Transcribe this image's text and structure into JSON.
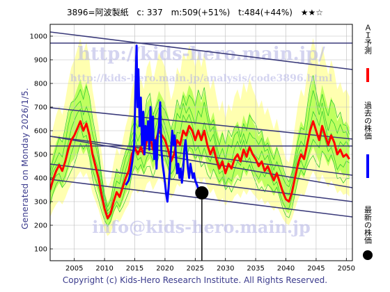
{
  "header": {
    "code_name": "3896=阿波製紙",
    "current": "c: 337",
    "max": "m:509(+51%)",
    "target": "t:484(+44%)",
    "rating": "★★☆"
  },
  "side_note": "Generated on Monday 2026/1/5.",
  "footer": "Copyright (c) Kids-Hero Research Institute. All Rights Reserved.",
  "watermarks": {
    "url": "http://kids-hero.main.jp/",
    "analysis_url": "http://kids-hero.main.jp/analysis/code3896.html",
    "email": "info@kids-hero.main.jp"
  },
  "legend": {
    "forecast": "ＡＩ予測",
    "past": "過去の株価",
    "latest": "最新の株価"
  },
  "colors": {
    "forecast": "#ff0000",
    "past": "#0000ff",
    "latest": "#000000",
    "band_inner": "#bfff5f",
    "band_outer": "#ffffb0",
    "trend_lines": "#3a3a7a",
    "frame": "#000000"
  },
  "chart_data": {
    "type": "line",
    "title": "",
    "xlabel": "",
    "ylabel": "",
    "xlim": [
      2001,
      2051
    ],
    "ylim": [
      50,
      1050
    ],
    "x_ticks": [
      2005,
      2010,
      2015,
      2020,
      2025,
      2030,
      2035,
      2040,
      2045,
      2050
    ],
    "y_ticks": [
      100,
      200,
      300,
      400,
      500,
      600,
      700,
      800,
      900,
      1000
    ],
    "grid": true,
    "legend_position": "right",
    "latest_point": {
      "x": 2026.1,
      "y": 337
    },
    "series": [
      {
        "name": "ＡＩ予測",
        "points": [
          [
            2001.0,
            350
          ],
          [
            2001.5,
            395
          ],
          [
            2002.0,
            430
          ],
          [
            2002.5,
            455
          ],
          [
            2003.0,
            430
          ],
          [
            2003.5,
            470
          ],
          [
            2004.0,
            520
          ],
          [
            2004.5,
            560
          ],
          [
            2005.0,
            580
          ],
          [
            2005.5,
            610
          ],
          [
            2006.0,
            640
          ],
          [
            2006.5,
            600
          ],
          [
            2007.0,
            630
          ],
          [
            2007.5,
            580
          ],
          [
            2008.0,
            500
          ],
          [
            2008.5,
            450
          ],
          [
            2009.0,
            400
          ],
          [
            2009.5,
            330
          ],
          [
            2010.0,
            270
          ],
          [
            2010.5,
            230
          ],
          [
            2011.0,
            250
          ],
          [
            2011.5,
            300
          ],
          [
            2012.0,
            340
          ],
          [
            2012.5,
            320
          ],
          [
            2013.0,
            360
          ],
          [
            2013.5,
            400
          ],
          [
            2014.0,
            430
          ],
          [
            2014.5,
            500
          ],
          [
            2015.0,
            530
          ],
          [
            2015.5,
            500
          ],
          [
            2016.0,
            530
          ],
          [
            2016.5,
            500
          ],
          [
            2017.0,
            560
          ],
          [
            2017.5,
            580
          ],
          [
            2018.0,
            520
          ],
          [
            2018.5,
            560
          ],
          [
            2019.0,
            600
          ],
          [
            2019.5,
            580
          ],
          [
            2020.0,
            560
          ],
          [
            2020.5,
            520
          ],
          [
            2021.0,
            470
          ],
          [
            2021.5,
            500
          ],
          [
            2022.0,
            560
          ],
          [
            2022.5,
            540
          ],
          [
            2023.0,
            600
          ],
          [
            2023.5,
            580
          ],
          [
            2024.0,
            620
          ],
          [
            2024.5,
            600
          ],
          [
            2025.0,
            560
          ],
          [
            2025.5,
            600
          ],
          [
            2026.0,
            560
          ],
          [
            2026.5,
            600
          ],
          [
            2027.0,
            540
          ],
          [
            2027.5,
            500
          ],
          [
            2028.0,
            530
          ],
          [
            2028.5,
            480
          ],
          [
            2029.0,
            440
          ],
          [
            2029.5,
            470
          ],
          [
            2030.0,
            420
          ],
          [
            2030.5,
            460
          ],
          [
            2031.0,
            440
          ],
          [
            2031.5,
            480
          ],
          [
            2032.0,
            500
          ],
          [
            2032.5,
            470
          ],
          [
            2033.0,
            520
          ],
          [
            2033.5,
            490
          ],
          [
            2034.0,
            530
          ],
          [
            2034.5,
            500
          ],
          [
            2035.0,
            480
          ],
          [
            2035.5,
            450
          ],
          [
            2036.0,
            470
          ],
          [
            2036.5,
            430
          ],
          [
            2037.0,
            450
          ],
          [
            2037.5,
            420
          ],
          [
            2038.0,
            390
          ],
          [
            2038.5,
            420
          ],
          [
            2039.0,
            380
          ],
          [
            2039.5,
            340
          ],
          [
            2040.0,
            310
          ],
          [
            2040.5,
            300
          ],
          [
            2041.0,
            340
          ],
          [
            2041.5,
            400
          ],
          [
            2042.0,
            460
          ],
          [
            2042.5,
            500
          ],
          [
            2043.0,
            480
          ],
          [
            2043.5,
            540
          ],
          [
            2044.0,
            600
          ],
          [
            2044.5,
            640
          ],
          [
            2045.0,
            600
          ],
          [
            2045.5,
            560
          ],
          [
            2046.0,
            620
          ],
          [
            2046.5,
            580
          ],
          [
            2047.0,
            540
          ],
          [
            2047.5,
            580
          ],
          [
            2048.0,
            550
          ],
          [
            2048.5,
            500
          ],
          [
            2049.0,
            520
          ],
          [
            2049.5,
            490
          ],
          [
            2050.0,
            500
          ],
          [
            2050.5,
            480
          ]
        ]
      },
      {
        "name": "過去の株価",
        "points": [
          [
            2013.5,
            370
          ],
          [
            2014.0,
            390
          ],
          [
            2014.3,
            420
          ],
          [
            2014.6,
            470
          ],
          [
            2014.9,
            540
          ],
          [
            2015.1,
            760
          ],
          [
            2015.3,
            960
          ],
          [
            2015.45,
            700
          ],
          [
            2015.6,
            860
          ],
          [
            2015.8,
            620
          ],
          [
            2016.0,
            740
          ],
          [
            2016.2,
            540
          ],
          [
            2016.4,
            680
          ],
          [
            2016.6,
            500
          ],
          [
            2016.8,
            620
          ],
          [
            2017.0,
            560
          ],
          [
            2017.2,
            640
          ],
          [
            2017.4,
            520
          ],
          [
            2017.6,
            700
          ],
          [
            2017.8,
            560
          ],
          [
            2018.0,
            660
          ],
          [
            2018.2,
            480
          ],
          [
            2018.4,
            560
          ],
          [
            2018.6,
            440
          ],
          [
            2018.8,
            580
          ],
          [
            2019.0,
            620
          ],
          [
            2019.2,
            720
          ],
          [
            2019.4,
            520
          ],
          [
            2019.6,
            460
          ],
          [
            2019.8,
            420
          ],
          [
            2020.0,
            380
          ],
          [
            2020.2,
            330
          ],
          [
            2020.4,
            300
          ],
          [
            2020.6,
            360
          ],
          [
            2020.8,
            440
          ],
          [
            2021.0,
            520
          ],
          [
            2021.2,
            600
          ],
          [
            2021.4,
            540
          ],
          [
            2021.6,
            580
          ],
          [
            2021.8,
            500
          ],
          [
            2022.0,
            420
          ],
          [
            2022.2,
            460
          ],
          [
            2022.4,
            400
          ],
          [
            2022.6,
            440
          ],
          [
            2022.8,
            380
          ],
          [
            2023.0,
            430
          ],
          [
            2023.2,
            520
          ],
          [
            2023.4,
            560
          ],
          [
            2023.6,
            500
          ],
          [
            2023.8,
            440
          ],
          [
            2024.0,
            400
          ],
          [
            2024.2,
            460
          ],
          [
            2024.4,
            430
          ],
          [
            2024.6,
            400
          ],
          [
            2024.8,
            420
          ],
          [
            2025.0,
            390
          ],
          [
            2025.3,
            370
          ],
          [
            2025.6,
            345
          ],
          [
            2026.1,
            337
          ]
        ]
      }
    ]
  }
}
